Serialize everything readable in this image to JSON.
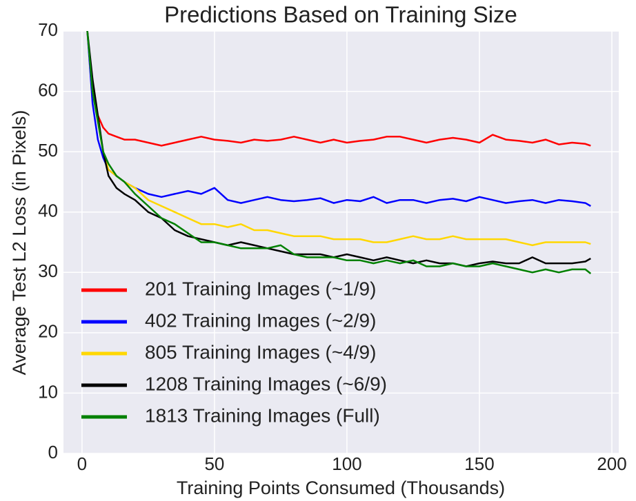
{
  "chart_data": {
    "type": "line",
    "title": "Predictions Based on Training Size",
    "x_label": "Training Points Consumed (Thousands)",
    "y_label": "Average Test L2 Loss (in Pixels)",
    "x": [
      2,
      4,
      6,
      8,
      10,
      13,
      16,
      20,
      25,
      30,
      35,
      40,
      45,
      50,
      55,
      60,
      65,
      70,
      75,
      80,
      85,
      90,
      95,
      100,
      105,
      110,
      115,
      120,
      125,
      130,
      135,
      140,
      145,
      150,
      155,
      160,
      165,
      170,
      175,
      180,
      185,
      190,
      192
    ],
    "series": [
      {
        "name": "201 Training Images (~1/9)",
        "color": "#ff0000",
        "values": [
          70,
          60,
          56,
          54,
          53,
          52.5,
          52,
          52,
          51.5,
          51,
          51.5,
          52,
          52.5,
          52,
          51.8,
          51.5,
          52,
          51.8,
          52,
          52.5,
          52,
          51.5,
          52,
          51.5,
          51.8,
          52,
          52.5,
          52.5,
          52,
          51.5,
          52,
          52.3,
          52,
          51.5,
          52.8,
          52,
          51.8,
          51.5,
          52,
          51.2,
          51.5,
          51.3,
          51
        ]
      },
      {
        "name": "402 Training Images (~2/9)",
        "color": "#0000ff",
        "values": [
          70,
          58,
          52,
          49,
          47,
          46,
          45,
          44,
          43,
          42.5,
          43,
          43.5,
          43,
          44,
          42,
          41.5,
          42,
          42.5,
          42,
          41.8,
          42,
          42.3,
          41.5,
          42,
          41.8,
          42.5,
          41.5,
          42,
          42,
          41.5,
          42,
          42.2,
          41.8,
          42.5,
          42,
          41.5,
          41.8,
          42,
          41.5,
          42,
          41.8,
          41.5,
          41
        ]
      },
      {
        "name": "805 Training Images (~4/9)",
        "color": "#ffd700",
        "values": [
          70,
          60,
          55,
          50,
          47,
          46,
          45,
          44,
          42,
          41,
          40,
          39,
          38,
          38,
          37.5,
          38,
          37,
          37,
          36.5,
          36,
          36,
          36,
          35.5,
          35.5,
          35.5,
          35,
          35,
          35.5,
          36,
          35.5,
          35.5,
          36,
          35.5,
          35.5,
          35.5,
          35.5,
          35,
          34.5,
          35,
          35,
          35,
          35,
          34.7
        ]
      },
      {
        "name": "1208 Training Images (~6/9)",
        "color": "#000000",
        "values": [
          70,
          62,
          56,
          50,
          46,
          44,
          43,
          42,
          40,
          39,
          37,
          36,
          35.5,
          35,
          34.5,
          35,
          34.5,
          34,
          33.5,
          33,
          33,
          33,
          32.5,
          33,
          32.5,
          32,
          32.5,
          32,
          31.5,
          32,
          31.5,
          31.5,
          31,
          31.5,
          31.8,
          31.5,
          31.5,
          32.5,
          31.5,
          31.5,
          31.5,
          31.8,
          32.3
        ]
      },
      {
        "name": "1813 Training Images (Full)",
        "color": "#008000",
        "values": [
          70,
          60,
          55,
          50,
          48,
          46,
          45,
          43,
          41,
          39,
          38,
          36.5,
          35,
          35,
          34.5,
          34,
          34,
          34,
          34.5,
          33,
          32.5,
          32.5,
          32.5,
          32,
          32,
          31.5,
          32,
          31.5,
          32,
          31,
          31,
          31.5,
          31,
          31,
          31.5,
          31,
          30.5,
          30,
          30.5,
          30,
          30.5,
          30.5,
          29.8
        ]
      }
    ],
    "xlim": [
      -7,
      202.6
    ],
    "ylim": [
      0,
      70
    ],
    "xticks": [
      0,
      50,
      100,
      150,
      200
    ],
    "yticks": [
      0,
      10,
      20,
      30,
      40,
      50,
      60,
      70
    ],
    "grid": true,
    "legend": "lower left"
  }
}
